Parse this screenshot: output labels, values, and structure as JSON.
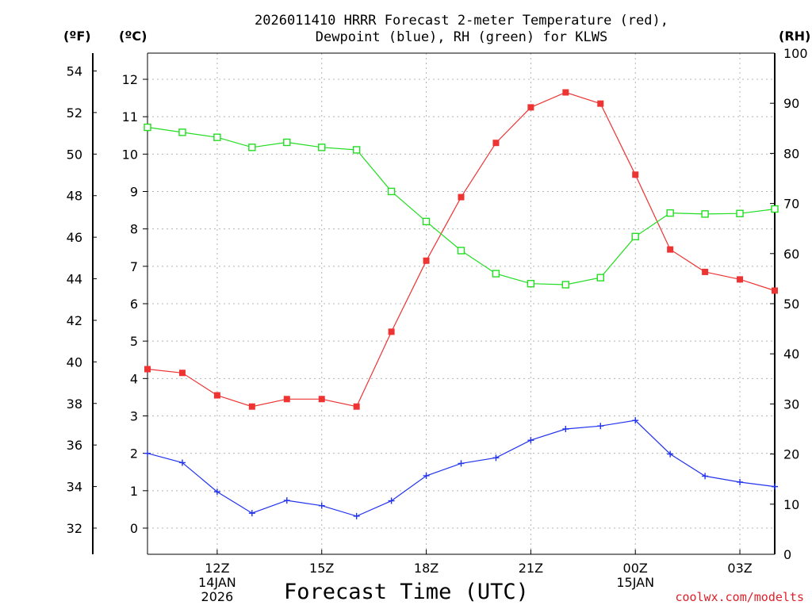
{
  "chart_data": {
    "type": "line",
    "title_line1": "2026011410 HRRR Forecast 2-meter Temperature (red),",
    "title_line2": "Dewpoint (blue), RH (green) for KLWS",
    "xlabel": "Forecast Time (UTC)",
    "unit_f": "(ºF)",
    "unit_c": "(ºC)",
    "unit_rh": "(RH)",
    "credit": "coolwx.com/modelts",
    "hours": [
      10,
      11,
      12,
      13,
      14,
      15,
      16,
      17,
      18,
      19,
      20,
      21,
      22,
      23,
      24,
      25,
      26,
      27,
      28
    ],
    "xlim": [
      10,
      28
    ],
    "x_ticks": [
      {
        "hour": 12,
        "lines": [
          "12Z",
          "14JAN",
          "2026"
        ]
      },
      {
        "hour": 15,
        "lines": [
          "15Z"
        ]
      },
      {
        "hour": 18,
        "lines": [
          "18Z"
        ]
      },
      {
        "hour": 21,
        "lines": [
          "21Z"
        ]
      },
      {
        "hour": 24,
        "lines": [
          "00Z",
          "15JAN"
        ]
      },
      {
        "hour": 27,
        "lines": [
          "03Z"
        ]
      }
    ],
    "c_axis": {
      "lim": [
        -0.7,
        12.7
      ],
      "ticks": [
        0,
        1,
        2,
        3,
        4,
        5,
        6,
        7,
        8,
        9,
        10,
        11,
        12
      ]
    },
    "f_axis": {
      "ticks": [
        32,
        34,
        36,
        38,
        40,
        42,
        44,
        46,
        48,
        50,
        52,
        54
      ]
    },
    "rh_axis": {
      "lim": [
        0,
        100
      ],
      "ticks": [
        0,
        10,
        20,
        30,
        40,
        50,
        60,
        70,
        80,
        90,
        100
      ]
    },
    "series": [
      {
        "name": "2-meter Temperature",
        "unit": "C",
        "color": "#ee3333",
        "marker": "filled-square",
        "values": [
          4.25,
          4.15,
          3.55,
          3.25,
          3.45,
          3.45,
          3.25,
          5.25,
          7.15,
          8.85,
          10.3,
          11.25,
          11.65,
          11.35,
          9.45,
          7.45,
          6.85,
          6.65,
          6.35
        ]
      },
      {
        "name": "Dewpoint",
        "unit": "C",
        "color": "#2233ee",
        "marker": "plus",
        "values": [
          2.0,
          1.75,
          0.97,
          0.4,
          0.74,
          0.6,
          0.32,
          0.73,
          1.4,
          1.73,
          1.88,
          2.35,
          2.65,
          2.73,
          2.88,
          1.98,
          1.39,
          1.23,
          1.11
        ]
      },
      {
        "name": "RH",
        "unit": "%",
        "color": "#22dd22",
        "marker": "open-square",
        "values": [
          85.2,
          84.2,
          83.2,
          81.2,
          82.2,
          81.2,
          80.7,
          72.4,
          66.4,
          60.6,
          56.0,
          54.0,
          53.8,
          55.2,
          63.4,
          68.1,
          67.9,
          68.0,
          68.9
        ]
      }
    ]
  }
}
